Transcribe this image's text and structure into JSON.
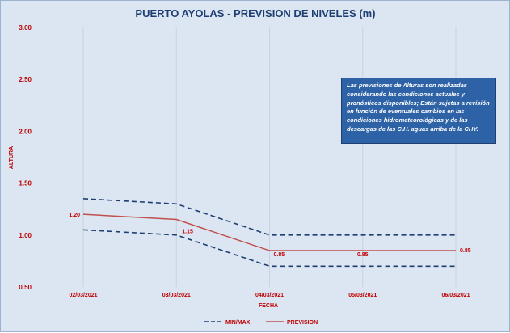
{
  "chart_data": {
    "type": "line",
    "title": "PUERTO AYOLAS - PREVISION DE NIVELES (m)",
    "xlabel": "FECHA",
    "ylabel": "ALTURA",
    "categories": [
      "02/03/2021",
      "03/03/2021",
      "04/03/2021",
      "05/03/2021",
      "06/03/2021"
    ],
    "ylim": [
      0.5,
      3.0
    ],
    "yticks": [
      "0.50",
      "1.00",
      "1.50",
      "2.00",
      "2.50",
      "3.00"
    ],
    "grid": "vertical",
    "legend_position": "bottom",
    "series": [
      {
        "name": "MIN/MAX",
        "style": "dashed",
        "color": "#1f3f73",
        "values": [
          1.35,
          1.3,
          1.0,
          1.0,
          1.0
        ]
      },
      {
        "name": "MIN/MAX",
        "style": "dashed",
        "color": "#1f3f73",
        "values": [
          1.05,
          1.0,
          0.7,
          0.7,
          0.7
        ]
      },
      {
        "name": "PREVISION",
        "style": "solid",
        "color": "#c0504d",
        "values": [
          1.2,
          1.15,
          0.85,
          0.85,
          0.85
        ],
        "labels": [
          "1.20",
          "1.15",
          "0.85",
          "0.85",
          "0.85"
        ]
      }
    ],
    "annotation": "Las previsiones de Alturas son realizadas considerando las condiciones actuales y pronósticos disponibles;  Están sujetas a revisión en función de eventuales cambios en las condiciones hidrometeorológicas y de las descargas de las C.H. aguas arriba de la CHY."
  },
  "colors": {
    "background": "#dce6f2",
    "title": "#1f3f73",
    "labels": "#c00000",
    "note_box": "#2e62a6"
  }
}
